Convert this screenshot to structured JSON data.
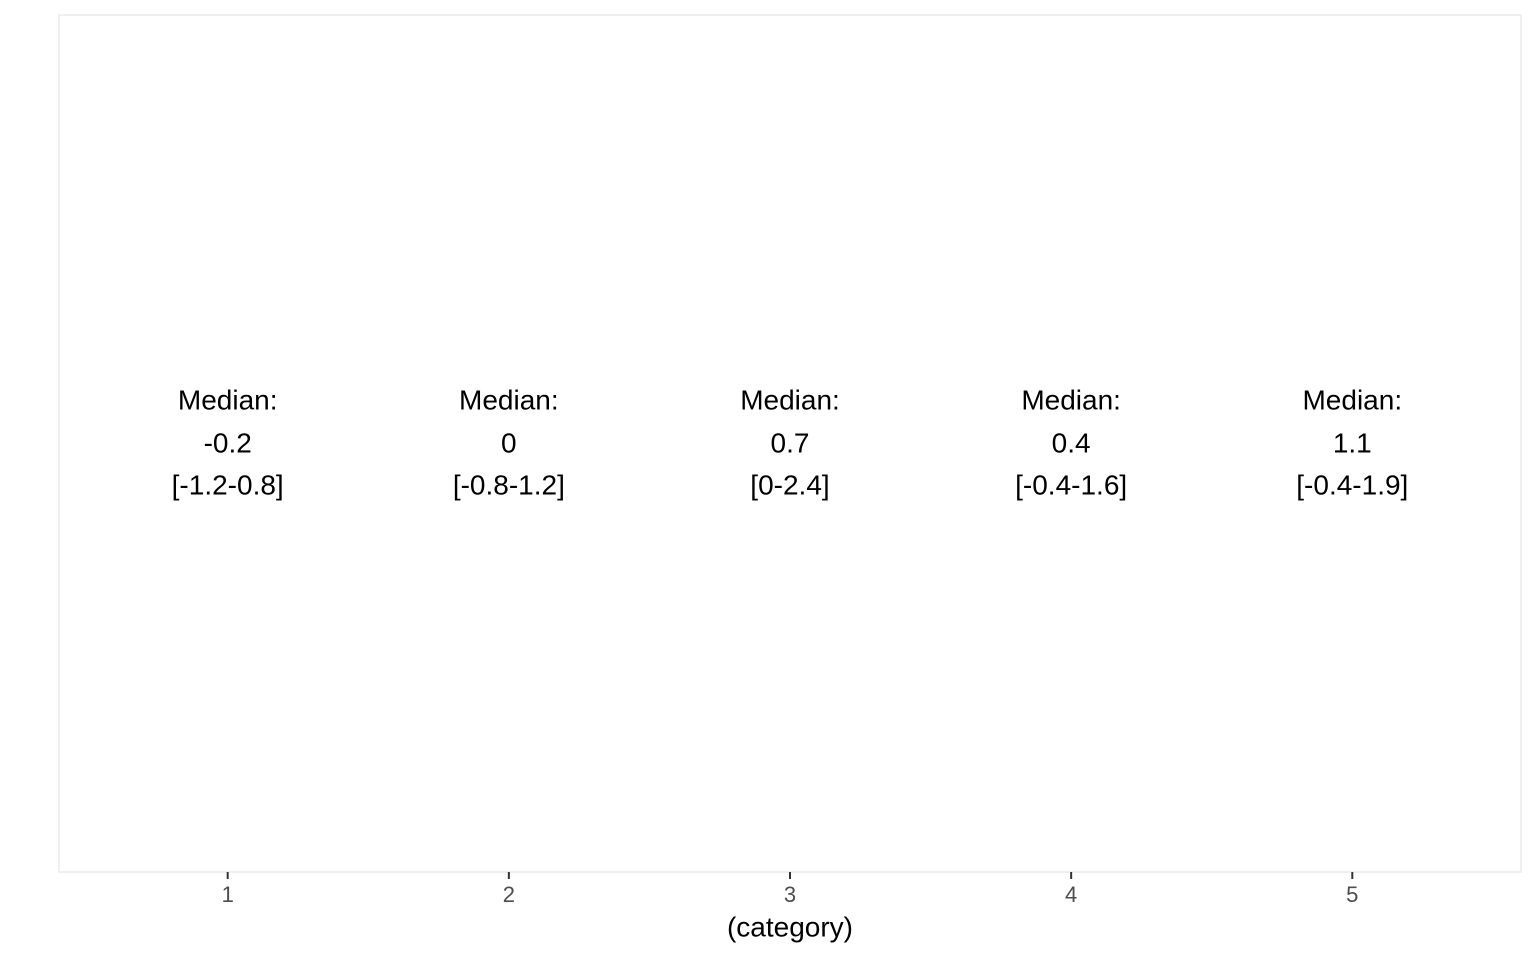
{
  "chart_data": {
    "type": "text",
    "x_label": "(category)",
    "categories": [
      "1",
      "2",
      "3",
      "4",
      "5"
    ],
    "median_label": "Median:",
    "values": [
      -0.2,
      0,
      0.7,
      0.4,
      1.1
    ],
    "range_labels": [
      "[-1.2-0.8]",
      "[-0.8-1.2]",
      "[0-2.4]",
      "[-0.4-1.6]",
      "[-0.4-1.9]"
    ]
  }
}
